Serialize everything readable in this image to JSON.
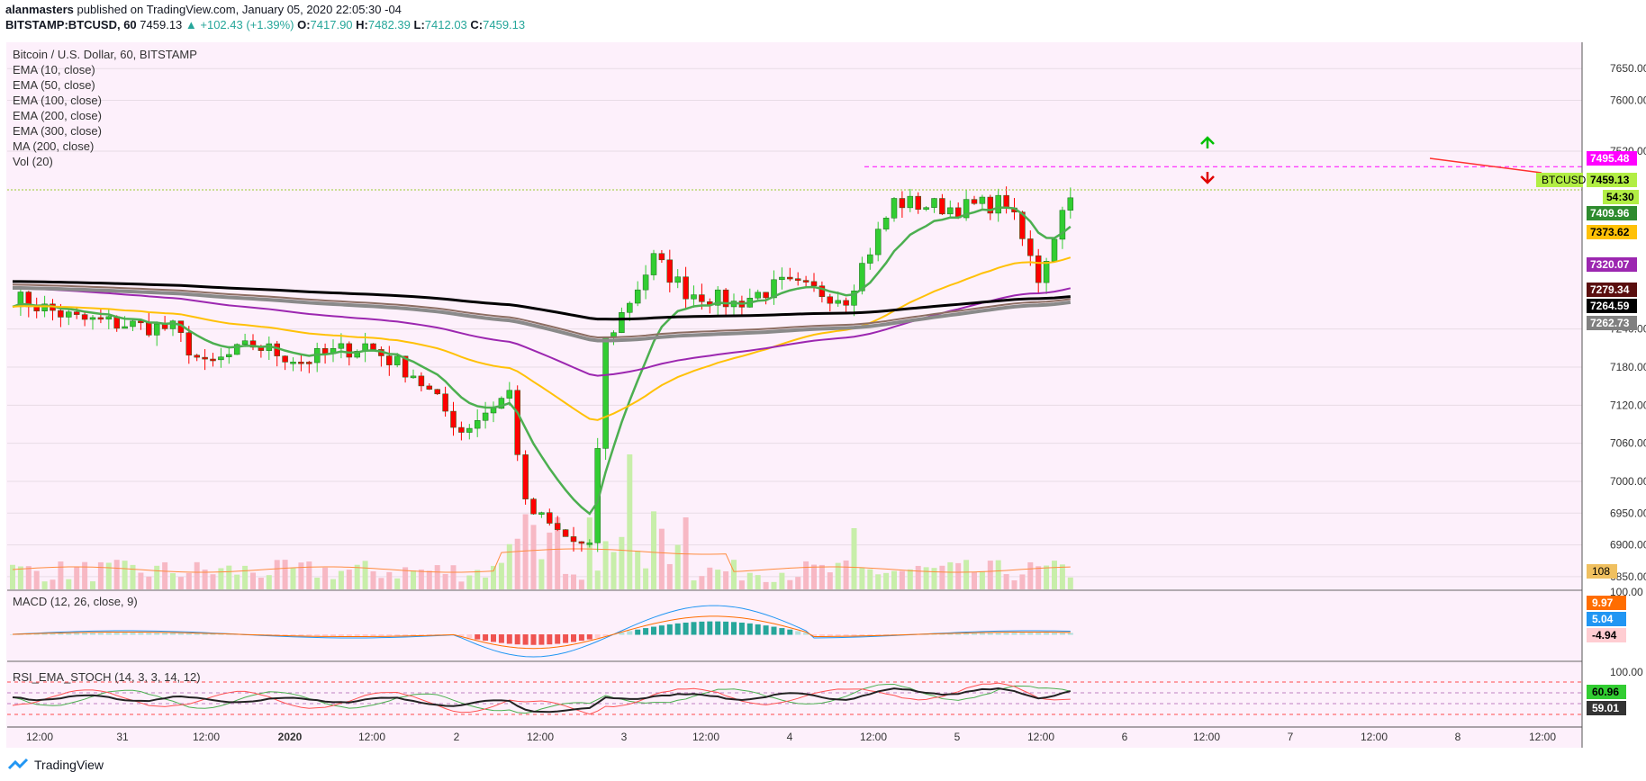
{
  "header": {
    "author": "alanmasters",
    "published_text": "published on TradingView.com, January 05, 2020 22:05:30 -04",
    "symbol": "BITSTAMP:BTCUSD, 60",
    "last": "7459.13",
    "change": "▲ +102.43 (+1.39%)",
    "o_label": "O:",
    "o": "7417.90",
    "h_label": "H:",
    "h": "7482.39",
    "l_label": "L:",
    "l": "7412.03",
    "c_label": "C:",
    "c": "7459.13"
  },
  "legend": {
    "title": "Bitcoin / U.S. Dollar, 60, BITSTAMP",
    "items": [
      "EMA (10, close)",
      "EMA (50, close)",
      "EMA (100, close)",
      "EMA (200, close)",
      "EMA (300, close)",
      "MA (200, close)",
      "Vol (20)"
    ]
  },
  "macd_legend": "MACD (12, 26, close, 9)",
  "rsi_legend": "RSI_EMA_STOCH (14, 3, 3, 14, 12)",
  "footer": {
    "brand": "TradingView"
  },
  "colors": {
    "up": "#32cd32",
    "down": "#ff0000",
    "ema10": "#4caf50",
    "ema50": "#ffc107",
    "ema100": "#9c27b0",
    "ema200": "#8d6e63",
    "ema300": "#000000",
    "ma200": "#8a8a8a",
    "bg": "#fdf0fb",
    "magenta": "#ff00ff"
  },
  "chart_data": {
    "type": "candlestick",
    "x_tick_labels": [
      "12:00",
      "31",
      "12:00",
      "2020",
      "12:00",
      "2",
      "12:00",
      "3",
      "12:00",
      "4",
      "12:00",
      "5",
      "12:00",
      "6",
      "12:00",
      "7",
      "12:00",
      "8",
      "12:00"
    ],
    "price_axis_labels": [
      "7650.00",
      "7600.00",
      "7520.00",
      "7240.00",
      "7180.00",
      "7120.00",
      "7060.00",
      "7000.00",
      "6950.00",
      "6900.00",
      "6850.00"
    ],
    "price_ylim": [
      6830,
      7690
    ],
    "price_tags": [
      {
        "label": "7495.48",
        "value": 7495.48,
        "color": "#ff00ff"
      },
      {
        "label": "7459.13",
        "value": 7459.13,
        "color": "#b2ee44"
      },
      {
        "label": "54:30",
        "value": 7438,
        "color": "#b2ee44"
      },
      {
        "label": "7409.96",
        "value": 7409.96,
        "color": "#2e8b2e"
      },
      {
        "label": "7373.62",
        "value": 7373.62,
        "color": "#ffc107"
      },
      {
        "label": "7320.07",
        "value": 7320.07,
        "color": "#9c27b0"
      },
      {
        "label": "7279.34",
        "value": 7279.34,
        "color": "#5a0f0f"
      },
      {
        "label": "7264.59",
        "value": 7264.59,
        "color": "#000000"
      },
      {
        "label": "7262.73",
        "value": 7262.73,
        "color": "#808080"
      }
    ],
    "symbol_tag": "BTCUSD",
    "volume_tag": "108",
    "resistance_level": 7495.48,
    "last_price": 7459.13,
    "candles_key_points": [
      {
        "t": 0,
        "p": 7290
      },
      {
        "t": 8,
        "p": 7255
      },
      {
        "t": 20,
        "p": 7240
      },
      {
        "t": 24,
        "p": 7180
      },
      {
        "t": 30,
        "p": 7215
      },
      {
        "t": 36,
        "p": 7190
      },
      {
        "t": 44,
        "p": 7215
      },
      {
        "t": 50,
        "p": 7170
      },
      {
        "t": 56,
        "p": 7080
      },
      {
        "t": 62,
        "p": 7140
      },
      {
        "t": 64,
        "p": 6960
      },
      {
        "t": 68,
        "p": 6920
      },
      {
        "t": 72,
        "p": 6890
      },
      {
        "t": 74,
        "p": 7220
      },
      {
        "t": 80,
        "p": 7350
      },
      {
        "t": 84,
        "p": 7300
      },
      {
        "t": 90,
        "p": 7280
      },
      {
        "t": 96,
        "p": 7310
      },
      {
        "t": 104,
        "p": 7290
      },
      {
        "t": 110,
        "p": 7440
      },
      {
        "t": 118,
        "p": 7430
      },
      {
        "t": 124,
        "p": 7440
      },
      {
        "t": 128,
        "p": 7320
      },
      {
        "t": 132,
        "p": 7460
      }
    ],
    "macd_axis_labels": [
      "100.00",
      "9.97",
      "5.04",
      "-4.94"
    ],
    "macd_ylim": [
      -60,
      110
    ],
    "rsi_axis_labels": [
      "100.00",
      "60.96",
      "59.01"
    ],
    "rsi_ylim": [
      0,
      100
    ]
  }
}
